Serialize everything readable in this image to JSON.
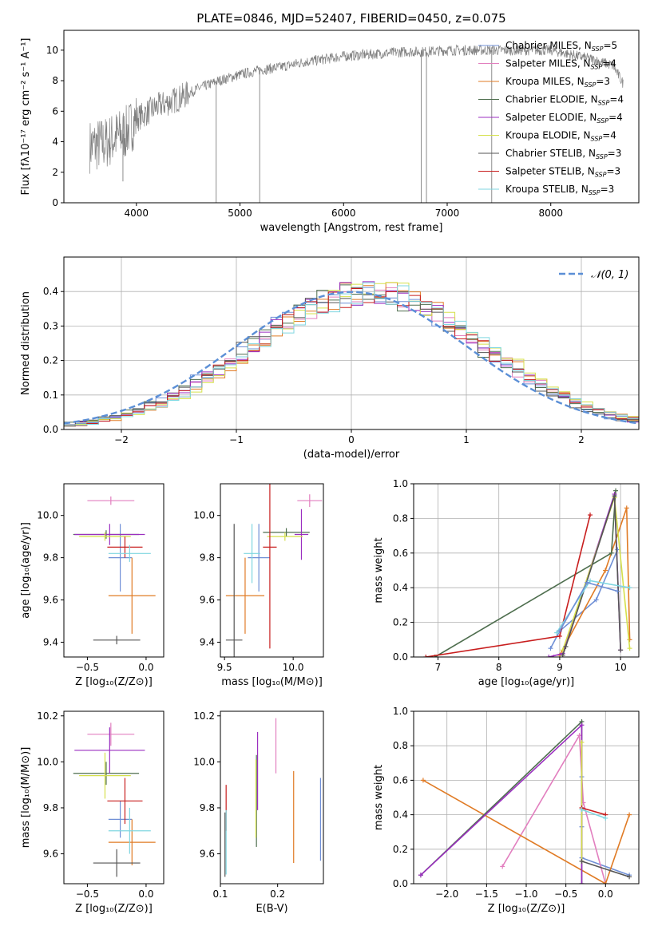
{
  "figure": {
    "title": "PLATE=0846, MJD=52407, FIBERID=0450, z=0.075"
  },
  "models": [
    {
      "name": "Chabrier MILES, N_SSP=5",
      "label_main": "Chabrier MILES, N",
      "label_sub": "SSP",
      "label_end": "=5",
      "color": "#6f8fd6"
    },
    {
      "name": "Salpeter MILES, N_SSP=4",
      "label_main": "Salpeter MILES, N",
      "label_sub": "SSP",
      "label_end": "=4",
      "color": "#e27fbf"
    },
    {
      "name": "Kroupa MILES, N_SSP=3",
      "label_main": "Kroupa MILES, N",
      "label_sub": "SSP",
      "label_end": "=3",
      "color": "#e07b25"
    },
    {
      "name": "Chabrier ELODIE, N_SSP=4",
      "label_main": "Chabrier ELODIE, N",
      "label_sub": "SSP",
      "label_end": "=4",
      "color": "#4e6e4e"
    },
    {
      "name": "Salpeter ELODIE, N_SSP=4",
      "label_main": "Salpeter ELODIE, N",
      "label_sub": "SSP",
      "label_end": "=4",
      "color": "#9b2fc0"
    },
    {
      "name": "Kroupa ELODIE, N_SSP=4",
      "label_main": "Kroupa ELODIE, N",
      "label_sub": "SSP",
      "label_end": "=4",
      "color": "#d5e04b"
    },
    {
      "name": "Chabrier STELIB, N_SSP=3",
      "label_main": "Chabrier STELIB, N",
      "label_sub": "SSP",
      "label_end": "=3",
      "color": "#555555"
    },
    {
      "name": "Salpeter STELIB, N_SSP=3",
      "label_main": "Salpeter STELIB, N",
      "label_sub": "SSP",
      "label_end": "=3",
      "color": "#c81e1e"
    },
    {
      "name": "Kroupa STELIB, N_SSP=3",
      "label_main": "Kroupa STELIB, N",
      "label_sub": "SSP",
      "label_end": "=3",
      "color": "#7fd6e0"
    }
  ],
  "chart_data": [
    {
      "id": "spectrum",
      "type": "line",
      "xlabel": "wavelength [Angstrom, rest frame]",
      "ylabel": "Flux [fλ10⁻¹⁷ erg cm⁻² s⁻¹ A⁻¹]",
      "xlim": [
        3300,
        8850
      ],
      "ylim": [
        0,
        11.3
      ],
      "xticks": [
        4000,
        5000,
        6000,
        7000,
        8000
      ],
      "yticks": [
        0,
        2,
        4,
        6,
        8,
        10
      ],
      "grid": false,
      "legend": "right",
      "data_color": "#808080",
      "model_color": "#7fd6e0",
      "continuum": {
        "x": [
          3550,
          3700,
          3800,
          3900,
          4000,
          4200,
          4400,
          4600,
          4800,
          5000,
          5200,
          5400,
          5600,
          5800,
          6000,
          6200,
          6400,
          6600,
          6800,
          7000,
          7200,
          7400,
          7600,
          7800,
          8000,
          8200,
          8400,
          8500,
          8600,
          8700
        ],
        "y": [
          3.7,
          3.9,
          4.3,
          4.6,
          5.5,
          6.3,
          6.8,
          7.5,
          8.0,
          8.4,
          8.7,
          8.9,
          9.2,
          9.4,
          9.6,
          9.7,
          9.8,
          9.9,
          9.9,
          10.0,
          10.0,
          10.0,
          10.0,
          10.0,
          10.0,
          9.7,
          9.4,
          9.2,
          9.0,
          7.8
        ]
      },
      "spikes": [
        {
          "x": 4770,
          "y": 0
        },
        {
          "x": 5190,
          "y": 0
        },
        {
          "x": 6750,
          "y": 0
        },
        {
          "x": 6800,
          "y": 0
        },
        {
          "x": 7430,
          "y": 0
        },
        {
          "x": 3870,
          "y": 1.4
        }
      ]
    },
    {
      "id": "residuals",
      "type": "histogram",
      "xlabel": "(data-model)/error",
      "ylabel": "Normed distribution",
      "xlim": [
        -2.5,
        2.5
      ],
      "ylim": [
        0,
        0.5
      ],
      "xticks": [
        -2,
        -1,
        0,
        1,
        2
      ],
      "yticks": [
        0.0,
        0.1,
        0.2,
        0.3,
        0.4
      ],
      "grid": true,
      "legend": "top-right",
      "reference_label": "𝒩(0, 1)",
      "reference_color": "#5b8fd6",
      "bin_width": 0.1
    },
    {
      "id": "age_vs_Z",
      "type": "scatter",
      "xlabel": "Z [log₁₀(Z/Z⊙)]",
      "ylabel": "age  [log₁₀(age/yr)]",
      "xlim": [
        -0.7,
        0.15
      ],
      "ylim": [
        9.33,
        10.15
      ],
      "xticks": [
        -0.5,
        0.0
      ],
      "yticks": [
        9.4,
        9.6,
        9.8,
        10.0
      ],
      "points": [
        {
          "x": -0.22,
          "y": 9.8,
          "xerr": 0.1,
          "yerr": 0.16
        },
        {
          "x": -0.3,
          "y": 10.07,
          "xerr": 0.2,
          "yerr": 0.02
        },
        {
          "x": -0.12,
          "y": 9.62,
          "xerr": 0.2,
          "yerr": 0.18
        },
        {
          "x": -0.34,
          "y": 9.91,
          "xerr": 0.28,
          "yerr": 0.02
        },
        {
          "x": -0.31,
          "y": 9.91,
          "xerr": 0.3,
          "yerr": 0.05
        },
        {
          "x": -0.35,
          "y": 9.9,
          "xerr": 0.22,
          "yerr": 0.02
        },
        {
          "x": -0.25,
          "y": 9.41,
          "xerr": 0.2,
          "yerr": 0.02
        },
        {
          "x": -0.18,
          "y": 9.85,
          "xerr": 0.15,
          "yerr": 0.05
        },
        {
          "x": -0.14,
          "y": 9.82,
          "xerr": 0.18,
          "yerr": 0.04
        }
      ]
    },
    {
      "id": "age_vs_mass",
      "type": "scatter",
      "xlabel": "mass [log₁₀(M/M⊙)]",
      "ylabel": "",
      "xlim": [
        9.47,
        10.22
      ],
      "ylim": [
        9.33,
        10.15
      ],
      "xticks": [
        9.5,
        10.0
      ],
      "yticks": [
        9.4,
        9.6,
        9.8,
        10.0
      ],
      "points": [
        {
          "x": 9.75,
          "y": 9.8,
          "xerr": 0.08,
          "yerr": 0.16
        },
        {
          "x": 10.12,
          "y": 10.07,
          "xerr": 0.09,
          "yerr": 0.03
        },
        {
          "x": 9.65,
          "y": 9.62,
          "xerr": 0.14,
          "yerr": 0.18
        },
        {
          "x": 9.95,
          "y": 9.92,
          "xerr": 0.17,
          "yerr": 0.02
        },
        {
          "x": 10.06,
          "y": 9.91,
          "xerr": 0.05,
          "yerr": 0.12
        },
        {
          "x": 9.94,
          "y": 9.9,
          "xerr": 0.13,
          "yerr": 0.02
        },
        {
          "x": 9.57,
          "y": 9.41,
          "xerr": 0.06,
          "yerr": 0.55
        },
        {
          "x": 9.83,
          "y": 9.85,
          "xerr": 0.05,
          "yerr": 0.48
        },
        {
          "x": 9.7,
          "y": 9.82,
          "xerr": 0.06,
          "yerr": 0.14
        }
      ]
    },
    {
      "id": "mass_weight_vs_age",
      "type": "line",
      "xlabel": "age  [log₁₀(age/yr)]",
      "ylabel": "mass weight",
      "xlim": [
        6.6,
        10.3
      ],
      "ylim": [
        0,
        1.0
      ],
      "xticks": [
        7,
        8,
        9,
        10
      ],
      "yticks": [
        0.0,
        0.2,
        0.4,
        0.6,
        0.8,
        1.0
      ],
      "grid": true,
      "series": [
        {
          "x": [
            8.85,
            9.0,
            9.6,
            9.95
          ],
          "y": [
            0.05,
            0.15,
            0.33,
            0.62
          ]
        },
        {
          "x": 8.9,
          "y": 0
        },
        {
          "x": [
            9.0,
            9.75,
            10.1,
            10.15
          ],
          "y": [
            0.01,
            0.5,
            0.86,
            0.1
          ]
        },
        {
          "x": [
            6.95,
            9.85,
            9.92
          ],
          "y": [
            0.0,
            0.6,
            0.96
          ]
        },
        {
          "x": [
            8.82,
            9.05,
            9.9,
            10.0
          ],
          "y": [
            0.0,
            0.02,
            0.94,
            0.04
          ]
        },
        {
          "x": [
            9.05,
            9.9,
            10.15
          ],
          "y": [
            0.04,
            0.92,
            0.05
          ]
        },
        {
          "x": [
            9.05,
            9.1,
            9.9,
            10.0
          ],
          "y": [
            0.01,
            0.06,
            0.93,
            0.04
          ]
        },
        {
          "x": [
            6.8,
            9.0,
            9.5
          ],
          "y": [
            0.0,
            0.12,
            0.82
          ]
        },
        {
          "x": [
            8.95,
            9.5,
            10.15
          ],
          "y": [
            0.14,
            0.44,
            0.4
          ]
        },
        {
          "x": [
            9.0,
            9.45,
            9.95
          ],
          "y": [
            0.15,
            0.43,
            0.38
          ]
        }
      ]
    },
    {
      "id": "mass_vs_Z",
      "type": "scatter",
      "xlabel": "Z [log₁₀(Z/Z⊙)]",
      "ylabel": "mass [log₁₀(M/M⊙)]",
      "xlim": [
        -0.7,
        0.15
      ],
      "ylim": [
        9.47,
        10.22
      ],
      "xticks": [
        -0.5,
        0.0
      ],
      "yticks": [
        9.6,
        9.8,
        10.0,
        10.2
      ],
      "points": [
        {
          "x": -0.22,
          "y": 9.75,
          "xerr": 0.1,
          "yerr": 0.08
        },
        {
          "x": -0.3,
          "y": 10.12,
          "xerr": 0.2,
          "yerr": 0.05
        },
        {
          "x": -0.12,
          "y": 9.65,
          "xerr": 0.2,
          "yerr": 0.1
        },
        {
          "x": -0.34,
          "y": 9.95,
          "xerr": 0.28,
          "yerr": 0.05
        },
        {
          "x": -0.31,
          "y": 10.05,
          "xerr": 0.3,
          "yerr": 0.1
        },
        {
          "x": -0.35,
          "y": 9.94,
          "xerr": 0.22,
          "yerr": 0.1
        },
        {
          "x": -0.25,
          "y": 9.56,
          "xerr": 0.2,
          "yerr": 0.06
        },
        {
          "x": -0.18,
          "y": 9.83,
          "xerr": 0.15,
          "yerr": 0.1
        },
        {
          "x": -0.14,
          "y": 9.7,
          "xerr": 0.18,
          "yerr": 0.1
        }
      ]
    },
    {
      "id": "mass_vs_EBV",
      "type": "scatter",
      "xlabel": "E(B-V)",
      "ylabel": "",
      "xlim": [
        0.1,
        0.28
      ],
      "ylim": [
        9.47,
        10.22
      ],
      "xticks": [
        0.1,
        0.2
      ],
      "yticks": [
        9.6,
        9.8,
        10.0,
        10.2
      ],
      "points": [
        {
          "x": 0.275,
          "y": 9.75,
          "yerr": 0.18
        },
        {
          "x": 0.197,
          "y": 10.07,
          "yerr": 0.12
        },
        {
          "x": 0.228,
          "y": 9.76,
          "yerr": 0.2
        },
        {
          "x": 0.163,
          "y": 9.83,
          "yerr": 0.2
        },
        {
          "x": 0.165,
          "y": 9.96,
          "yerr": 0.17
        },
        {
          "x": 0.162,
          "y": 9.84,
          "yerr": 0.17
        },
        {
          "x": 0.108,
          "y": 9.64,
          "yerr": 0.14
        },
        {
          "x": 0.11,
          "y": 9.8,
          "yerr": 0.1
        },
        {
          "x": 0.11,
          "y": 9.65,
          "yerr": 0.14
        }
      ]
    },
    {
      "id": "mass_weight_vs_Z",
      "type": "line",
      "xlabel": "Z [log₁₀(Z/Z⊙)]",
      "ylabel": "mass weight",
      "xlim": [
        -2.42,
        0.42
      ],
      "ylim": [
        0,
        1.0
      ],
      "xticks": [
        -2.0,
        -1.5,
        -1.0,
        -0.5,
        0.0
      ],
      "yticks": [
        0.0,
        0.2,
        0.4,
        0.6,
        0.8,
        1.0
      ],
      "grid": true,
      "series": [
        {
          "x": [
            -0.3,
            -0.3,
            -0.3,
            0.3
          ],
          "y": [
            0.62,
            0.33,
            0.15,
            0.05
          ]
        },
        {
          "x": [
            -1.3,
            -0.33,
            -0.28,
            0.0
          ],
          "y": [
            0.1,
            0.86,
            0.47,
            0.0
          ]
        },
        {
          "x": [
            -2.3,
            0.0,
            0.3
          ],
          "y": [
            0.6,
            0.0,
            0.4
          ]
        },
        {
          "x": [
            -2.33,
            -0.3,
            -0.3
          ],
          "y": [
            0.05,
            0.94,
            0.0
          ]
        },
        {
          "x": [
            -2.33,
            -0.3,
            -0.3
          ],
          "y": [
            0.05,
            0.92,
            0.0
          ]
        },
        {
          "x": [
            -0.3,
            -0.3
          ],
          "y": [
            0.82,
            0.13
          ]
        },
        {
          "x": [
            -0.3,
            0.3
          ],
          "y": [
            0.13,
            0.04
          ]
        },
        {
          "x": [
            -0.3,
            0.0
          ],
          "y": [
            0.44,
            0.4
          ]
        },
        {
          "x": [
            -0.3,
            0.0
          ],
          "y": [
            0.43,
            0.38
          ]
        }
      ]
    }
  ]
}
